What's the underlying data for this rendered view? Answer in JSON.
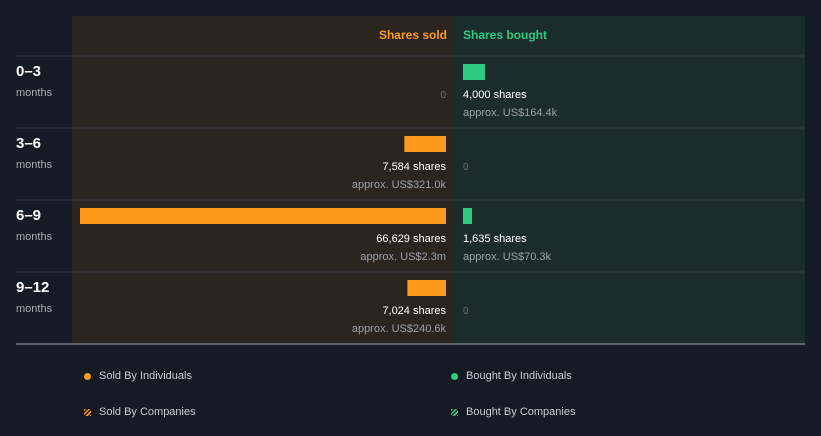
{
  "chart_data": {
    "type": "bar",
    "orientation": "horizontal",
    "sold_label": "Shares sold",
    "bought_label": "Shares bought",
    "categories": [
      {
        "period": "0–3",
        "unit": "months"
      },
      {
        "period": "3–6",
        "unit": "months"
      },
      {
        "period": "6–9",
        "unit": "months"
      },
      {
        "period": "9–12",
        "unit": "months"
      }
    ],
    "series": [
      {
        "name": "Shares sold",
        "values": [
          0,
          7584,
          66629,
          7024
        ],
        "shares_text": [
          "0",
          "7,584 shares",
          "66,629 shares",
          "7,024 shares"
        ],
        "approx_text": [
          "",
          "approx. US$321.0k",
          "approx. US$2.3m",
          "approx. US$240.6k"
        ]
      },
      {
        "name": "Shares bought",
        "values": [
          4000,
          0,
          1635,
          0
        ],
        "shares_text": [
          "4,000 shares",
          "0",
          "1,635 shares",
          "0"
        ],
        "approx_text": [
          "approx. US$164.4k",
          "",
          "approx. US$70.3k",
          ""
        ]
      }
    ],
    "max_value": 66629,
    "legend_placement": "bottom",
    "legend": [
      {
        "label": "Sold By Individuals",
        "color": "#ff9a1f",
        "style": "dot"
      },
      {
        "label": "Bought By Individuals",
        "color": "#2ecc80",
        "style": "dot"
      },
      {
        "label": "Sold By Companies",
        "color": "#ff9a1f",
        "style": "hatch"
      },
      {
        "label": "Bought By Companies",
        "color": "#2ecc80",
        "style": "hatch"
      }
    ],
    "colors": {
      "sold": "#ff9a1f",
      "bought": "#2ecc80",
      "sold_panel": "#2b2520",
      "bought_panel": "#1a2d2b",
      "background": "#151b24"
    }
  }
}
